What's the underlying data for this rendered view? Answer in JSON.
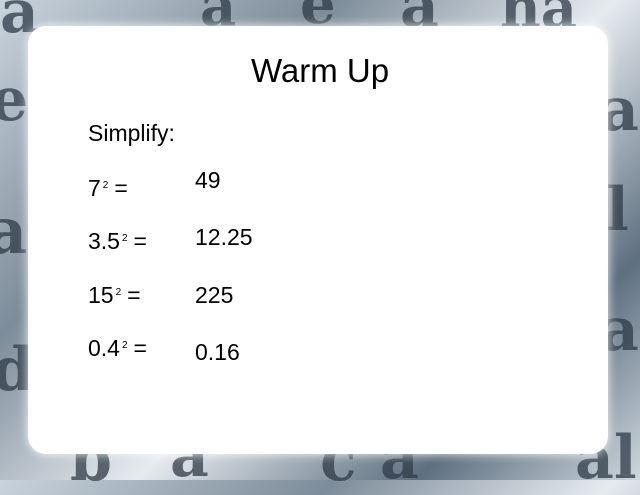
{
  "slide": {
    "title": "Warm Up",
    "prompt": "Simplify:",
    "problems": [
      {
        "base": "7",
        "exponent": "2",
        "equals": "=",
        "answer": "49"
      },
      {
        "base": "3.5",
        "exponent": "2",
        "equals": "=",
        "answer": "12.25"
      },
      {
        "base": "15",
        "exponent": "2",
        "equals": "=",
        "answer": "225"
      },
      {
        "base": "0.4",
        "exponent": "2",
        "equals": "=",
        "answer": "0.16"
      }
    ]
  },
  "border_letters": [
    "a",
    "a",
    "a",
    "ha",
    "e",
    "a",
    "d",
    "a",
    "l",
    "a",
    "b",
    "a",
    "c",
    "a",
    "al",
    "e"
  ]
}
